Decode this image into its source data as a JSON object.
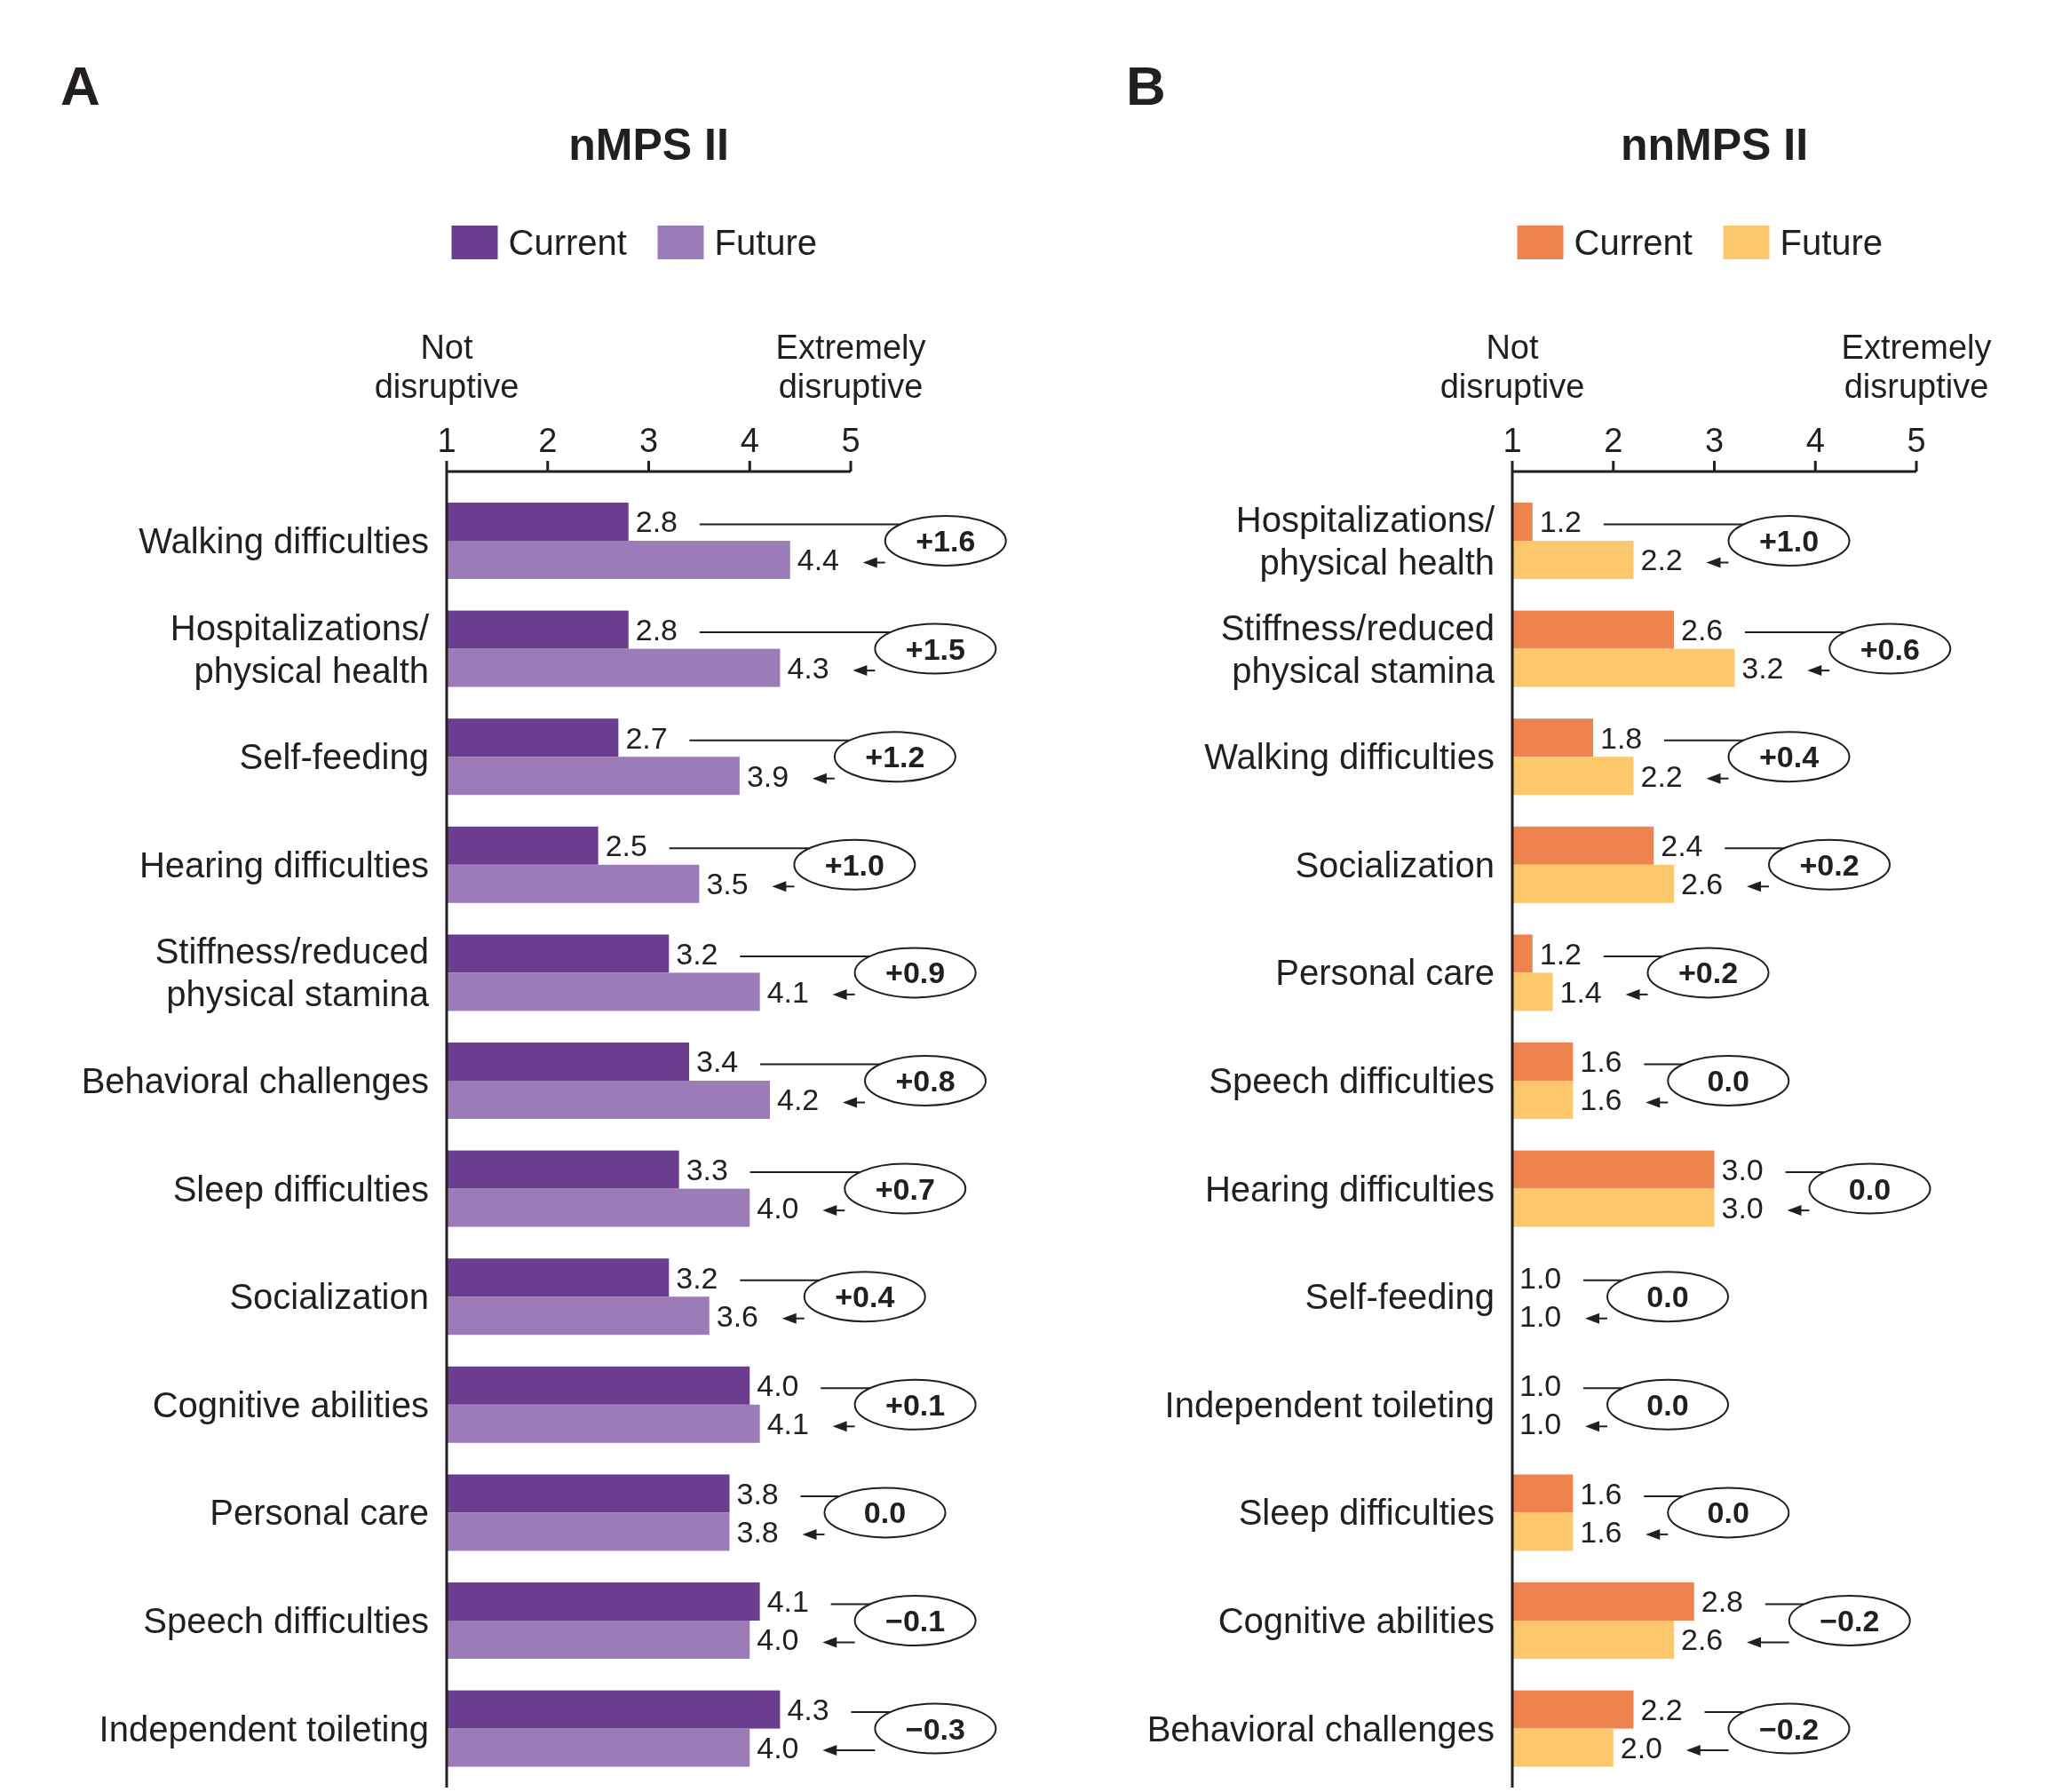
{
  "chart_data": [
    {
      "type": "bar",
      "orientation": "horizontal",
      "title": "nMPS II",
      "legend": "top",
      "xlim": [
        1,
        5
      ],
      "xticks": [
        1,
        2,
        3,
        4,
        5
      ],
      "categories": [
        "Walking difficulties",
        "Hospitalizations/\nphysical health",
        "Self-feeding",
        "Hearing difficulties",
        "Stiffness/reduced\nphysical stamina",
        "Behavioral challenges",
        "Sleep difficulties",
        "Socialization",
        "Cognitive abilities",
        "Personal care",
        "Speech difficulties",
        "Independent toileting"
      ],
      "series": [
        {
          "name": "Current",
          "color": "#6b3d8f",
          "values": [
            2.8,
            2.8,
            2.7,
            2.5,
            3.2,
            3.4,
            3.3,
            3.2,
            4.0,
            3.8,
            4.1,
            4.3
          ],
          "value_labels": [
            "2.8",
            "2.8",
            "2.7",
            "2.5",
            "3.2",
            "3.4",
            "3.3",
            "3.2",
            "4.0",
            "3.8",
            "4.1",
            "4.3"
          ]
        },
        {
          "name": "Future",
          "color": "#9b7bb8",
          "values": [
            4.4,
            4.3,
            3.9,
            3.5,
            4.1,
            4.2,
            4.0,
            3.6,
            4.1,
            3.8,
            4.0,
            4.0
          ],
          "value_labels": [
            "4.4",
            "4.3",
            "3.9",
            "3.5",
            "4.1",
            "4.2",
            "4.0",
            "3.6",
            "4.1",
            "3.8",
            "4.0",
            "4.0"
          ]
        }
      ],
      "annotations": [
        "A",
        "Not\ndisruptive",
        "Extremely\ndisruptive",
        "+1.6",
        "+1.5",
        "+1.2",
        "+1.0",
        "+0.9",
        "+0.8",
        "+0.7",
        "+0.4",
        "+0.1",
        "0.0",
        "−0.1",
        "−0.3"
      ]
    },
    {
      "type": "bar",
      "orientation": "horizontal",
      "title": "nnMPS II",
      "legend": "top",
      "xlim": [
        1,
        5
      ],
      "xticks": [
        1,
        2,
        3,
        4,
        5
      ],
      "categories": [
        "Hospitalizations/\nphysical health",
        "Stiffness/reduced\nphysical stamina",
        "Walking difficulties",
        "Socialization",
        "Personal care",
        "Speech difficulties",
        "Hearing difficulties",
        "Self-feeding",
        "Independent toileting",
        "Sleep difficulties",
        "Cognitive abilities",
        "Behavioral challenges"
      ],
      "series": [
        {
          "name": "Current",
          "color": "#ef834f",
          "values": [
            1.2,
            2.6,
            1.8,
            2.4,
            1.2,
            1.6,
            3.0,
            1.0,
            1.0,
            1.6,
            2.8,
            2.2
          ],
          "value_labels": [
            "1.2",
            "2.6",
            "1.8",
            "2.4",
            "1.2",
            "1.6",
            "3.0",
            "1.0",
            "1.0",
            "1.6",
            "2.8",
            "2.2"
          ]
        },
        {
          "name": "Future",
          "color": "#fdc86b",
          "values": [
            2.2,
            3.2,
            2.2,
            2.6,
            1.4,
            1.6,
            3.0,
            1.0,
            1.0,
            1.6,
            2.6,
            2.0
          ],
          "value_labels": [
            "2.2",
            "3.2",
            "2.2",
            "2.6",
            "1.4",
            "1.6",
            "3.0",
            "1.0",
            "1.0",
            "1.6",
            "2.6",
            "2.0"
          ]
        }
      ],
      "annotations": [
        "B",
        "Not\ndisruptive",
        "Extremely\ndisruptive",
        "+1.0",
        "+0.6",
        "+0.4",
        "+0.2",
        "+0.2",
        "0.0",
        "0.0",
        "0.0",
        "0.0",
        "0.0",
        "−0.2",
        "−0.2"
      ]
    }
  ]
}
